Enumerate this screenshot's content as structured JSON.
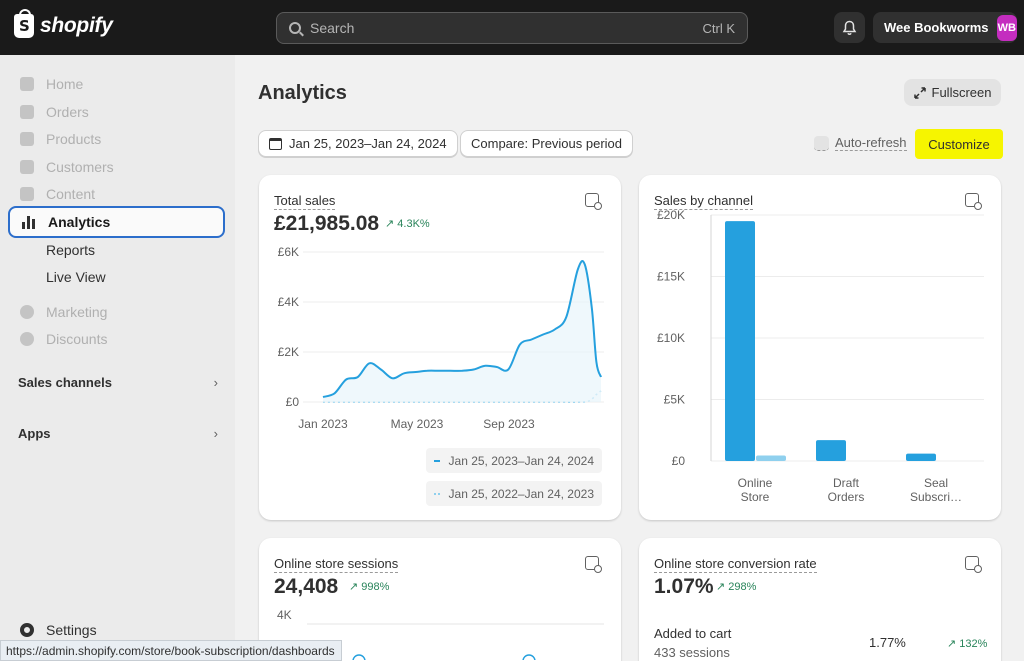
{
  "brand": {
    "name": "shopify"
  },
  "search": {
    "placeholder": "Search",
    "shortcut": "Ctrl K"
  },
  "store": {
    "name": "Wee Bookworms",
    "initials": "WB",
    "avatar_color": "#c42dbf"
  },
  "sidebar": {
    "items": [
      {
        "label": "Home",
        "icon": "home-icon"
      },
      {
        "label": "Orders",
        "icon": "inbox-icon"
      },
      {
        "label": "Products",
        "icon": "tag-icon"
      },
      {
        "label": "Customers",
        "icon": "person-icon"
      },
      {
        "label": "Content",
        "icon": "content-icon"
      },
      {
        "label": "Analytics",
        "icon": "bar-chart-icon",
        "active": true
      }
    ],
    "analytics_sub": [
      "Reports",
      "Live View"
    ],
    "items2": [
      {
        "label": "Marketing",
        "icon": "target-icon"
      },
      {
        "label": "Discounts",
        "icon": "discount-icon"
      }
    ],
    "sales_channels": "Sales channels",
    "apps": "Apps",
    "settings": "Settings"
  },
  "status_bar": {
    "url": "https://admin.shopify.com/store/book-subscription/dashboards"
  },
  "page": {
    "title": "Analytics",
    "fullscreen": "Fullscreen",
    "date_range": "Jan 25, 2023–Jan 24, 2024",
    "compare": "Compare: Previous period",
    "auto_refresh": "Auto-refresh",
    "customize": "Customize",
    "highlight_color": "#f6f500",
    "accent_color": "#2c6ecb"
  },
  "cards": {
    "total_sales": {
      "title": "Total sales",
      "value": "£21,985.08",
      "delta": "4.3K%",
      "legend_current": "Jan 25, 2023–Jan 24, 2024",
      "legend_previous": "Jan 25, 2022–Jan 24, 2023"
    },
    "sales_by_channel": {
      "title": "Sales by channel"
    },
    "sessions": {
      "title": "Online store sessions",
      "value": "24,408",
      "delta": "998%",
      "y_tick": "4K"
    },
    "conversion": {
      "title": "Online store conversion rate",
      "value": "1.07%",
      "delta": "298%",
      "row_label": "Added to cart",
      "row_sub": "433 sessions",
      "row_pct": "1.77%",
      "row_delta": "132%"
    }
  },
  "chart_data": [
    {
      "type": "line",
      "title": "Total sales",
      "y_ticks": [
        "£0",
        "£2K",
        "£4K",
        "£6K"
      ],
      "ylim": [
        0,
        6000
      ],
      "x_ticks": [
        "Jan 2023",
        "May 2023",
        "Sep 2023"
      ],
      "series": [
        {
          "name": "Jan 25, 2023–Jan 24, 2024",
          "x": [
            0,
            0.5,
            1,
            1.5,
            2,
            2.5,
            3,
            3.5,
            4,
            4.5,
            5,
            5.5,
            6,
            6.5,
            7,
            7.5,
            8,
            8.5,
            9,
            9.5,
            10,
            10.5,
            11,
            11.3,
            11.6,
            11.8,
            12
          ],
          "values": [
            200,
            350,
            900,
            1000,
            1550,
            1300,
            950,
            1150,
            1200,
            1250,
            1250,
            1250,
            1250,
            1300,
            1450,
            1400,
            1300,
            2300,
            2500,
            2700,
            2900,
            3400,
            5300,
            5500,
            3800,
            1600,
            1000
          ]
        },
        {
          "name": "Jan 25, 2022–Jan 24, 2023",
          "x": [
            0,
            2,
            4,
            6,
            8,
            10,
            11,
            11.5,
            11.8,
            12
          ],
          "values": [
            0,
            0,
            0,
            0,
            0,
            0,
            0,
            50,
            300,
            450
          ]
        }
      ],
      "colors": [
        "#25a0de",
        "#8fd0ee"
      ]
    },
    {
      "type": "bar",
      "title": "Sales by channel",
      "y_ticks": [
        "£0",
        "£5K",
        "£10K",
        "£15K",
        "£20K"
      ],
      "ylim": [
        0,
        20000
      ],
      "categories": [
        [
          "Online",
          "Store"
        ],
        [
          "Draft",
          "Orders"
        ],
        [
          "Seal",
          "Subscri…"
        ]
      ],
      "series": [
        {
          "values": [
            19500,
            1700,
            600
          ]
        },
        {
          "values": [
            450,
            0,
            0
          ]
        }
      ],
      "colors": [
        "#25a0de",
        "#8fd0ee"
      ]
    }
  ]
}
